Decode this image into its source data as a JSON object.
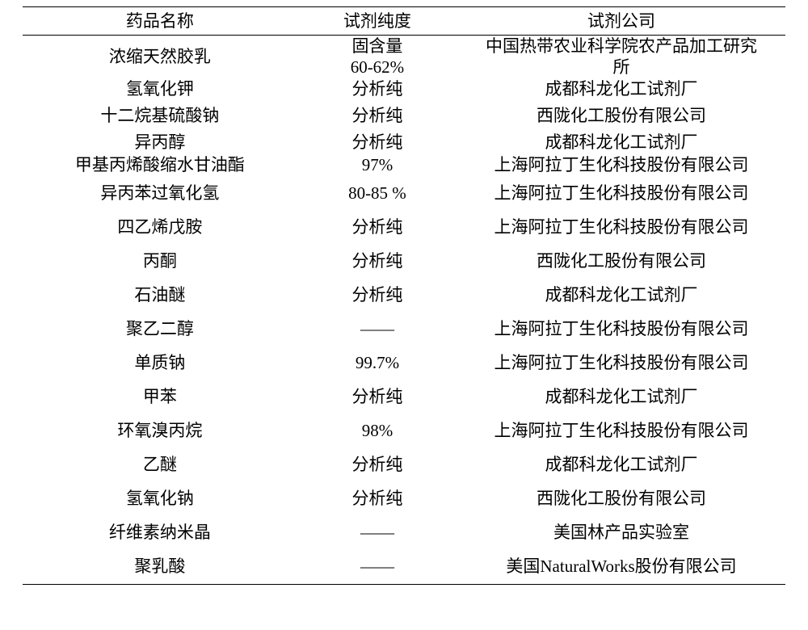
{
  "table": {
    "type": "table",
    "background_color": "#ffffff",
    "text_color": "#000000",
    "border_color": "#000000",
    "font_family": "SimSun, serif",
    "header_fontsize": 21,
    "body_fontsize": 21,
    "column_widths_pct": [
      36,
      21,
      43
    ],
    "columns": [
      "药品名称",
      "试剂纯度",
      "试剂公司"
    ],
    "rows": [
      {
        "name": "浓缩天然胶乳",
        "purity_line1": "固含量",
        "purity_line2": "60-62%",
        "supplier_line1": "中国热带农业科学院农产品加工研究",
        "supplier_line2": "所",
        "h": "h-tall",
        "multiline": true
      },
      {
        "name": "氢氧化钾",
        "purity": "分析纯",
        "supplier": "成都科龙化工试剂厂",
        "h": "h-short"
      },
      {
        "name": "十二烷基硫酸钠",
        "purity": "分析纯",
        "supplier": "西陇化工股份有限公司",
        "h": "h-med"
      },
      {
        "name": "异丙醇",
        "purity": "分析纯",
        "supplier": "成都科龙化工试剂厂",
        "h": "h-short"
      },
      {
        "name": "甲基丙烯酸缩水甘油酯",
        "purity": "97%",
        "supplier": "上海阿拉丁生化科技股份有限公司",
        "h": "h-short"
      },
      {
        "name": "异丙苯过氧化氢",
        "purity": "80-85 %",
        "supplier": "上海阿拉丁生化科技股份有限公司",
        "h": "h-reg"
      },
      {
        "name": "四乙烯戊胺",
        "purity": "分析纯",
        "supplier": "上海阿拉丁生化科技股份有限公司",
        "h": "h-reg"
      },
      {
        "name": "丙酮",
        "purity": "分析纯",
        "supplier": "西陇化工股份有限公司",
        "h": "h-reg"
      },
      {
        "name": "石油醚",
        "purity": "分析纯",
        "supplier": "成都科龙化工试剂厂",
        "h": "h-reg"
      },
      {
        "name": "聚乙二醇",
        "purity": "——",
        "supplier": "上海阿拉丁生化科技股份有限公司",
        "h": "h-reg"
      },
      {
        "name": "单质钠",
        "purity": "99.7%",
        "supplier": "上海阿拉丁生化科技股份有限公司",
        "h": "h-reg"
      },
      {
        "name": "甲苯",
        "purity": "分析纯",
        "supplier": "成都科龙化工试剂厂",
        "h": "h-reg"
      },
      {
        "name": "环氧溴丙烷",
        "purity": "98%",
        "supplier": "上海阿拉丁生化科技股份有限公司",
        "h": "h-reg"
      },
      {
        "name": "乙醚",
        "purity": "分析纯",
        "supplier": "成都科龙化工试剂厂",
        "h": "h-reg"
      },
      {
        "name": "氢氧化钠",
        "purity": "分析纯",
        "supplier": "西陇化工股份有限公司",
        "h": "h-reg"
      },
      {
        "name": "纤维素纳米晶",
        "purity": "——",
        "supplier": "美国林产品实验室",
        "h": "h-reg"
      },
      {
        "name": "聚乳酸",
        "purity": "——",
        "supplier": "美国NaturalWorks股份有限公司",
        "h": "h-reg"
      }
    ]
  }
}
